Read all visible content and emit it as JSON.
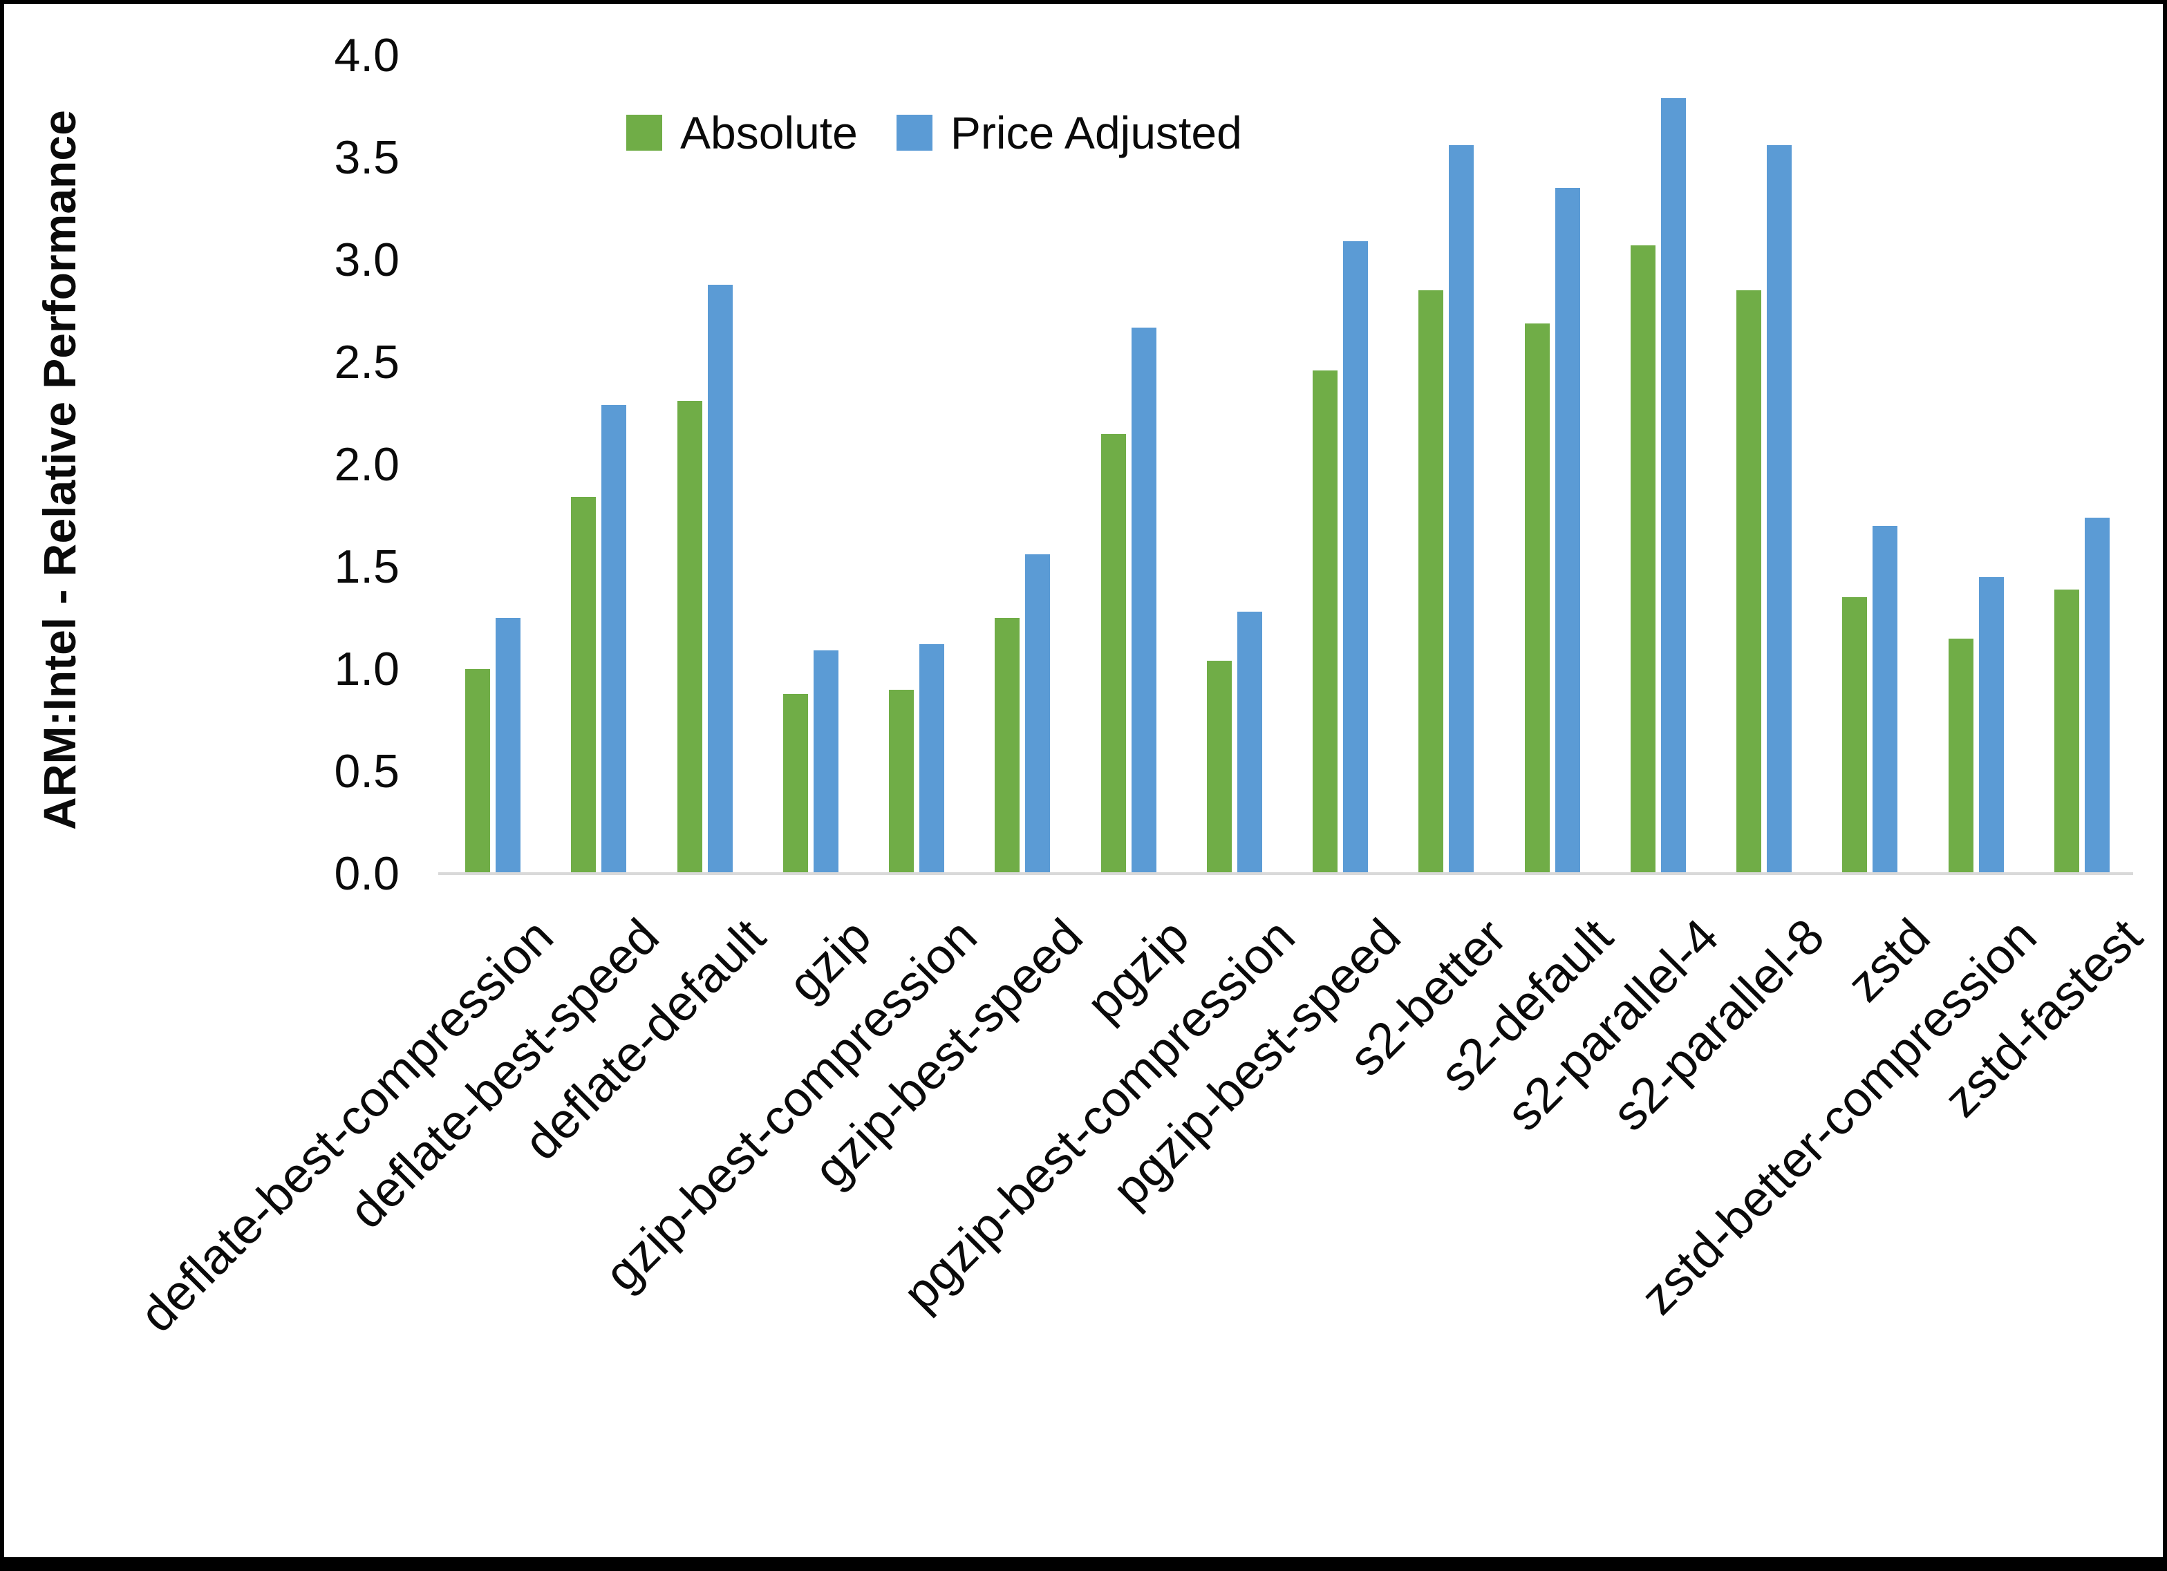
{
  "chart_data": {
    "type": "bar",
    "title": "",
    "xlabel": "",
    "ylabel": "ARM:Intel - Relative Performance",
    "ylim": [
      0.0,
      4.0
    ],
    "ytick_step": 0.5,
    "yticks": [
      "0.0",
      "0.5",
      "1.0",
      "1.5",
      "2.0",
      "2.5",
      "3.0",
      "3.5",
      "4.0"
    ],
    "grid": false,
    "legend_position": "top-center",
    "categories": [
      "deflate-best-compression",
      "deflate-best-speed",
      "deflate-default",
      "gzip",
      "gzip-best-compression",
      "gzip-best-speed",
      "pgzip",
      "pgzip-best-compression",
      "pgzip-best-speed",
      "s2-better",
      "s2-default",
      "s2-parallel-4",
      "s2-parallel-8",
      "zstd",
      "zstd-better-compression",
      "zstd-fastest"
    ],
    "series": [
      {
        "name": "Absolute",
        "color": "#70AD47",
        "values": [
          1.0,
          1.84,
          2.31,
          0.88,
          0.9,
          1.25,
          2.15,
          1.04,
          2.46,
          2.85,
          2.69,
          3.07,
          2.85,
          1.35,
          1.15,
          1.39
        ]
      },
      {
        "name": "Price Adjusted",
        "color": "#5B9BD5",
        "values": [
          1.25,
          2.29,
          2.88,
          1.09,
          1.12,
          1.56,
          2.67,
          1.28,
          3.09,
          3.56,
          3.35,
          3.79,
          3.56,
          1.7,
          1.45,
          1.74
        ]
      }
    ],
    "colors": {
      "axis_line": "#d9d9d9",
      "text": "#0a0a0a",
      "frame": "#000000"
    }
  }
}
